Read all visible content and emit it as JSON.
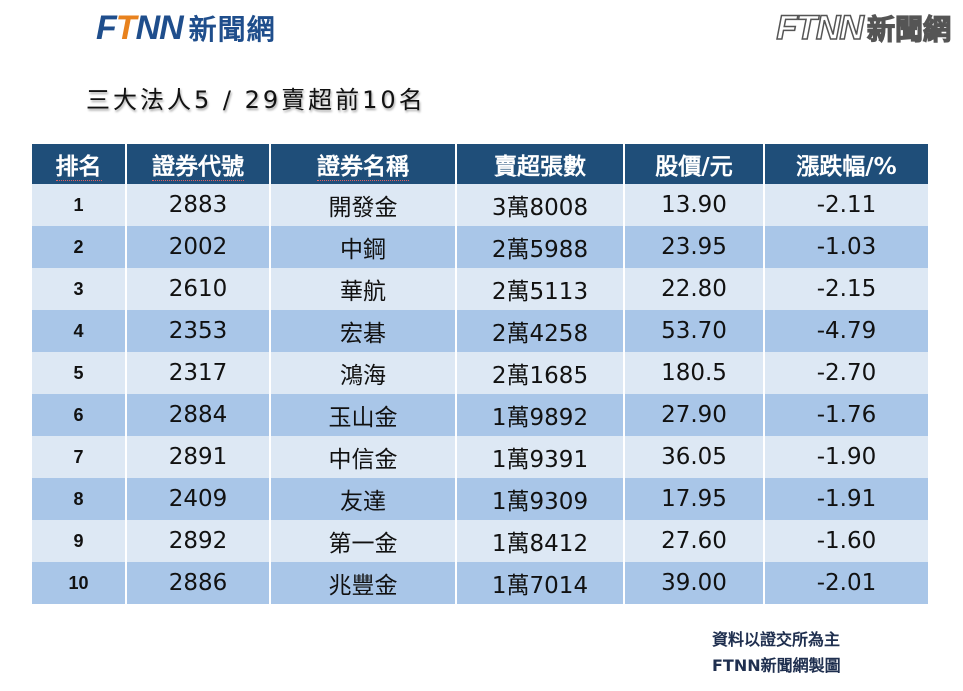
{
  "logo": {
    "word": "FTNN",
    "chinese": "新聞網"
  },
  "watermark": {
    "word": "FTNN",
    "chinese": "新聞網"
  },
  "title": "三大法人5 / 29賣超前10名",
  "table": {
    "headers": [
      "排名",
      "證券代號",
      "證券名稱",
      "賣超張數",
      "股價/元",
      "漲跌幅/%"
    ],
    "rows": [
      [
        "1",
        "2883",
        "開發金",
        "3萬8008",
        "13.90",
        "-2.11"
      ],
      [
        "2",
        "2002",
        "中鋼",
        "2萬5988",
        "23.95",
        "-1.03"
      ],
      [
        "3",
        "2610",
        "華航",
        "2萬5113",
        "22.80",
        "-2.15"
      ],
      [
        "4",
        "2353",
        "宏碁",
        "2萬4258",
        "53.70",
        "-4.79"
      ],
      [
        "5",
        "2317",
        "鴻海",
        "2萬1685",
        "180.5",
        "-2.70"
      ],
      [
        "6",
        "2884",
        "玉山金",
        "1萬9892",
        "27.90",
        "-1.76"
      ],
      [
        "7",
        "2891",
        "中信金",
        "1萬9391",
        "36.05",
        "-1.90"
      ],
      [
        "8",
        "2409",
        "友達",
        "1萬9309",
        "17.95",
        "-1.91"
      ],
      [
        "9",
        "2892",
        "第一金",
        "1萬8412",
        "27.60",
        "-1.60"
      ],
      [
        "10",
        "2886",
        "兆豐金",
        "1萬7014",
        "39.00",
        "-2.01"
      ]
    ]
  },
  "footer": {
    "line1": "資料以證交所為主",
    "line2": "FTNN新聞網製圖"
  },
  "colors": {
    "header_bg": "#1f4e79",
    "row_light": "#dde8f4",
    "row_dark": "#a9c6e8",
    "brand_blue": "#1f4e8c",
    "brand_orange": "#e8821e"
  }
}
